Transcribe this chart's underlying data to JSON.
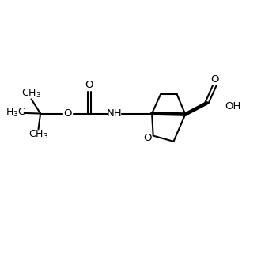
{
  "background_color": "#ffffff",
  "line_color": "#000000",
  "line_width": 1.5,
  "font_size": 9.5,
  "figsize": [
    3.3,
    3.3
  ],
  "dpi": 100,
  "xlim": [
    0,
    10
  ],
  "ylim": [
    0,
    10
  ]
}
